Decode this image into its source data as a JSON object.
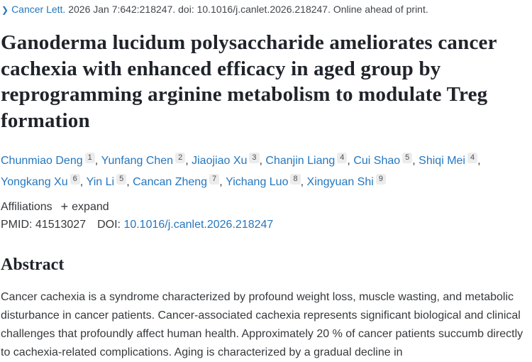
{
  "citation": {
    "chevron_glyph": "❯",
    "journal": "Cancer Lett.",
    "details": "2026 Jan 7:642:218247. doi: 10.1016/j.canlet.2026.218247.",
    "status": "Online ahead of print."
  },
  "title": "Ganoderma lucidum polysaccharide ameliorates cancer cachexia with enhanced efficacy in aged group by reprogramming arginine metabolism to modulate Treg formation",
  "authors": [
    {
      "name": "Chunmiao Deng",
      "affiliation_number": "1"
    },
    {
      "name": "Yunfang Chen",
      "affiliation_number": "2"
    },
    {
      "name": "Jiaojiao Xu",
      "affiliation_number": "3"
    },
    {
      "name": "Chanjin Liang",
      "affiliation_number": "4"
    },
    {
      "name": "Cui Shao",
      "affiliation_number": "5"
    },
    {
      "name": "Shiqi Mei",
      "affiliation_number": "4"
    },
    {
      "name": "Yongkang Xu",
      "affiliation_number": "6"
    },
    {
      "name": "Yin Li",
      "affiliation_number": "5"
    },
    {
      "name": "Cancan Zheng",
      "affiliation_number": "7"
    },
    {
      "name": "Yichang Luo",
      "affiliation_number": "8"
    },
    {
      "name": "Xingyuan Shi",
      "affiliation_number": "9"
    }
  ],
  "affiliations": {
    "label": "Affiliations",
    "plus_glyph": "+",
    "expand_label": "expand"
  },
  "identifiers": {
    "pmid_label": "PMID:",
    "pmid_value": "41513027",
    "doi_label": "DOI:",
    "doi_value": "10.1016/j.canlet.2026.218247"
  },
  "abstract": {
    "heading": "Abstract",
    "paragraph": "Cancer cachexia is a syndrome characterized by profound weight loss, muscle wasting, and metabolic disturbance in cancer patients. Cancer-associated cachexia represents significant biological and clinical challenges that profoundly affect human health. Approximately 20 % of cancer patients succumb directly to cachexia-related complications. Aging is characterized by a gradual decline in"
  },
  "colors": {
    "link_blue": "#2577BE",
    "body_text": "#36393d",
    "heading_text": "#20242a",
    "badge_background": "#ececec",
    "badge_text": "#4c5157"
  }
}
